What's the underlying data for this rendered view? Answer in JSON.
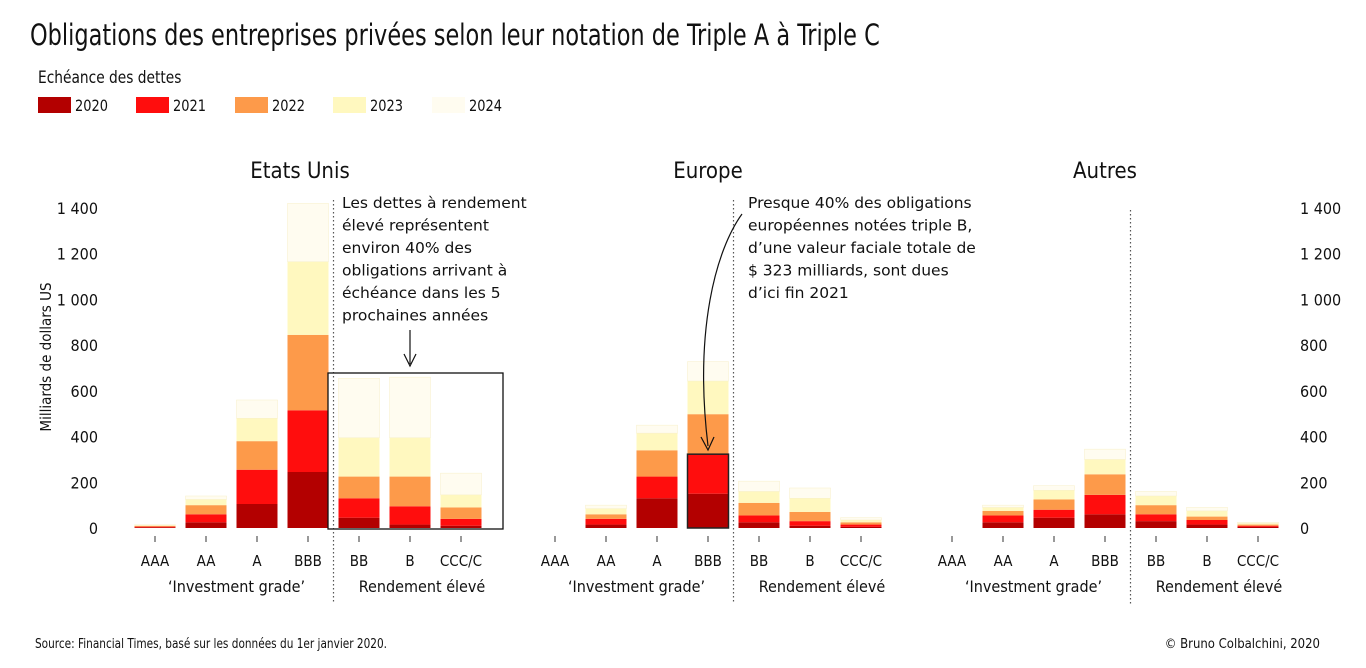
{
  "title": "Obligations des entreprises privées selon leur notation de Triple A à Triple C",
  "legend": {
    "title": "Echéance des dettes",
    "items": [
      {
        "label": "2020",
        "color": "#b30000"
      },
      {
        "label": "2021",
        "color": "#ff0d0d"
      },
      {
        "label": "2022",
        "color": "#fd9a4a"
      },
      {
        "label": "2023",
        "color": "#fff8bf"
      },
      {
        "label": "2024",
        "color": "#fffcf0"
      }
    ]
  },
  "source": "Source: Financial Times, basé sur les données du 1er janvier 2020.",
  "credit": "© Bruno Colbalchini, 2020",
  "annotations": {
    "us": [
      "Les dettes à rendement",
      "élevé représentent",
      "environ 40% des",
      "obligations arrivant à",
      "échéance dans les 5",
      "prochaines années"
    ],
    "eu": [
      "Presque 40% des obligations",
      "européennes notées triple B,",
      "d’une valeur faciale totale de",
      "$ 323 milliards, sont dues",
      "d’ici fin 2021"
    ]
  },
  "chart_data": {
    "type": "bar",
    "stacked": true,
    "ylabel": "Milliards de dollars US",
    "ylim": [
      0,
      1400
    ],
    "yticks": [
      0,
      200,
      400,
      600,
      800,
      1000,
      1200,
      1400
    ],
    "ytick_labels": [
      "0",
      "200",
      "400",
      "600",
      "800",
      "1 000",
      "1 200",
      "1 400"
    ],
    "categories": [
      "AAA",
      "AA",
      "A",
      "BBB",
      "BB",
      "B",
      "CCC/C"
    ],
    "group_labels": [
      "‘Investment grade’",
      "Rendement élevé"
    ],
    "series_names": [
      "2020",
      "2021",
      "2022",
      "2023",
      "2024"
    ],
    "panels": [
      {
        "title": "Etats Unis",
        "series": [
          {
            "name": "2020",
            "values": [
              3,
              25,
              105,
              245,
              45,
              15,
              10
            ]
          },
          {
            "name": "2021",
            "values": [
              3,
              35,
              150,
              270,
              85,
              80,
              30
            ]
          },
          {
            "name": "2022",
            "values": [
              3,
              40,
              125,
              330,
              95,
              130,
              50
            ]
          },
          {
            "name": "2023",
            "values": [
              3,
              25,
              100,
              320,
              170,
              170,
              55
            ]
          },
          {
            "name": "2024",
            "values": [
              2,
              15,
              80,
              255,
              260,
              265,
              95
            ]
          }
        ]
      },
      {
        "title": "Europe",
        "series": [
          {
            "name": "2020",
            "values": [
              0,
              15,
              130,
              150,
              25,
              10,
              5
            ]
          },
          {
            "name": "2021",
            "values": [
              0,
              25,
              95,
              173,
              30,
              20,
              10
            ]
          },
          {
            "name": "2022",
            "values": [
              0,
              20,
              115,
              175,
              55,
              40,
              10
            ]
          },
          {
            "name": "2023",
            "values": [
              0,
              25,
              75,
              145,
              50,
              60,
              10
            ]
          },
          {
            "name": "2024",
            "values": [
              0,
              15,
              35,
              85,
              45,
              45,
              10
            ]
          }
        ]
      },
      {
        "title": "Autres",
        "series": [
          {
            "name": "2020",
            "values": [
              0,
              25,
              45,
              60,
              30,
              15,
              5
            ]
          },
          {
            "name": "2021",
            "values": [
              0,
              30,
              35,
              85,
              30,
              20,
              5
            ]
          },
          {
            "name": "2022",
            "values": [
              0,
              20,
              45,
              90,
              40,
              15,
              5
            ]
          },
          {
            "name": "2023",
            "values": [
              0,
              15,
              40,
              65,
              40,
              25,
              5
            ]
          },
          {
            "name": "2024",
            "values": [
              0,
              10,
              20,
              45,
              20,
              15,
              5
            ]
          }
        ]
      }
    ]
  }
}
